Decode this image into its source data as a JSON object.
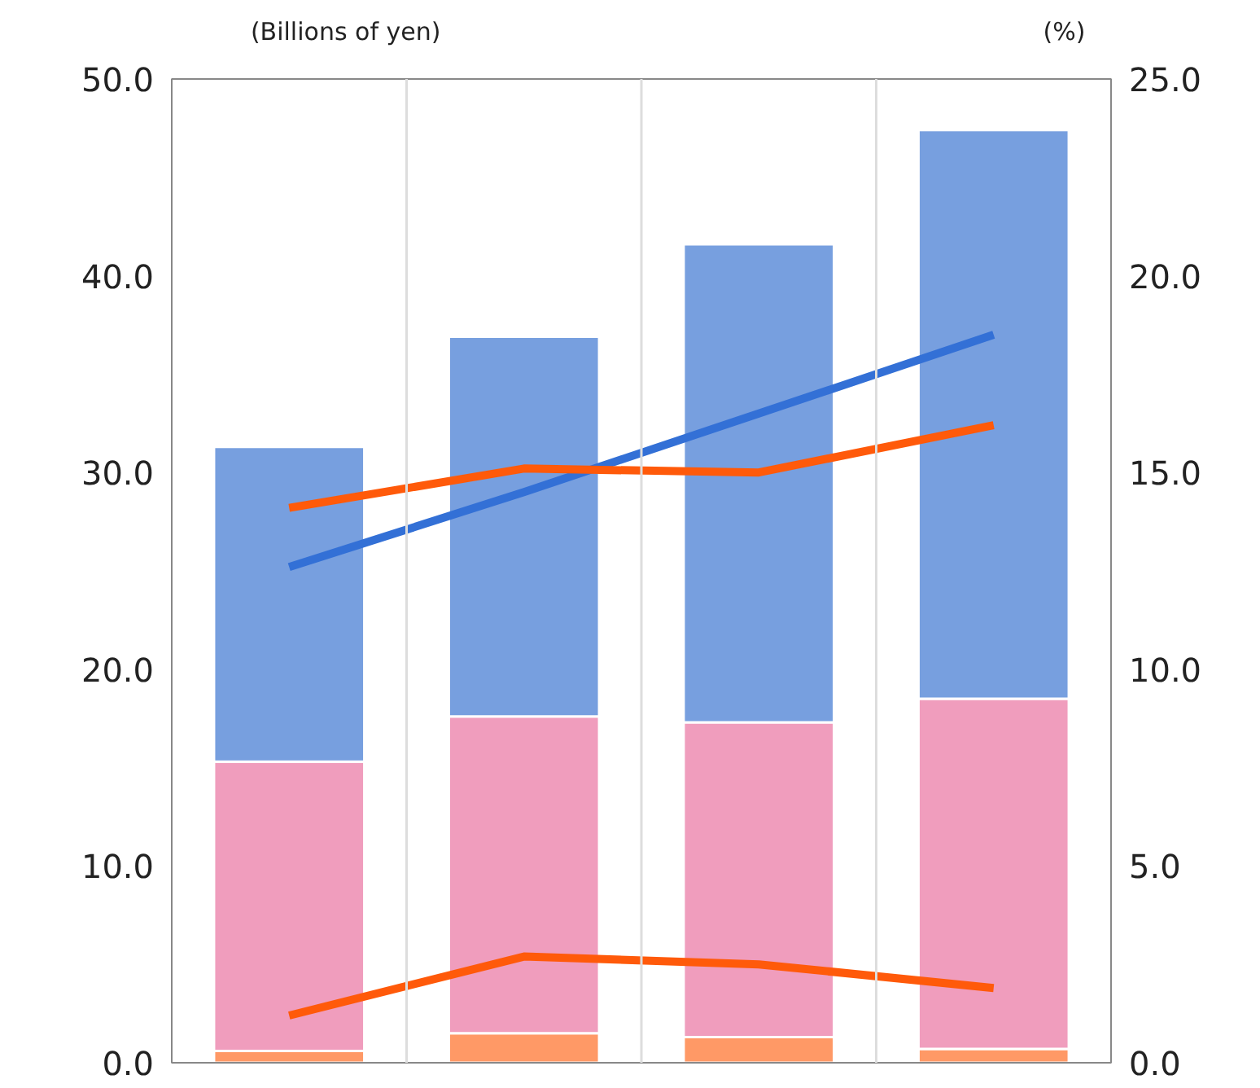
{
  "chart_data": {
    "type": "bar",
    "ylabel": "(Billions of yen)",
    "y2label": "(%)",
    "stacked": true,
    "categories": [
      null,
      null,
      null,
      null
    ],
    "series": [
      {
        "color": "#ff9966",
        "values": [
          0.6,
          1.5,
          1.3,
          0.7
        ]
      },
      {
        "color": "#f09dbd",
        "values": [
          14.7,
          16.1,
          16.0,
          17.8
        ]
      },
      {
        "color": "#779fdf",
        "values": [
          16.0,
          19.3,
          24.3,
          28.9
        ]
      },
      {
        "type": "line",
        "axis": "y2",
        "color": "#3370d6",
        "values": [
          12.6,
          14.5,
          16.5,
          18.5
        ]
      },
      {
        "type": "line",
        "axis": "y2",
        "color": "#ff5a0a",
        "values": [
          14.1,
          15.1,
          15.0,
          16.2
        ]
      },
      {
        "type": "line",
        "axis": "y2",
        "color": "#ff5a0a",
        "values": [
          1.2,
          2.7,
          2.5,
          1.9
        ]
      }
    ],
    "ylim": [
      0,
      50
    ],
    "yticks": [
      {
        "value": 0,
        "label": "0.0"
      },
      {
        "value": 10,
        "label": "10.0"
      },
      {
        "value": 20,
        "label": "20.0"
      },
      {
        "value": 30,
        "label": "30.0"
      },
      {
        "value": 40,
        "label": "40.0"
      },
      {
        "value": 50,
        "label": "50.0"
      }
    ],
    "y2lim": [
      0,
      25
    ],
    "y2ticks": [
      {
        "value": 0,
        "label": "0.0"
      },
      {
        "value": 5,
        "label": "5.0"
      },
      {
        "value": 10,
        "label": "10.0"
      },
      {
        "value": 15,
        "label": "15.0"
      },
      {
        "value": 20,
        "label": "20.0"
      },
      {
        "value": 25,
        "label": "25.0"
      }
    ],
    "grid": "x",
    "marker": "none",
    "line_style": "solid"
  }
}
